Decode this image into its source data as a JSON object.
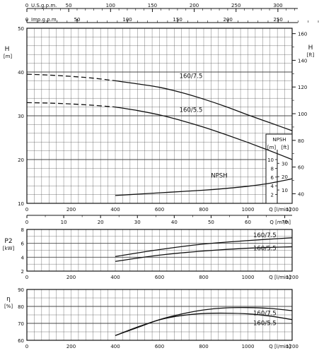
{
  "chart_data": [
    {
      "type": "line",
      "panel": "head",
      "top_axes": [
        {
          "label": "U.S.g.p.m.",
          "min": 0,
          "max": 350,
          "ticks": [
            0,
            50,
            100,
            150,
            200,
            250,
            300,
            350
          ]
        },
        {
          "label": "Imp.g.p.m.",
          "min": 0,
          "max": 300,
          "ticks": [
            0,
            50,
            100,
            150,
            200,
            250,
            300
          ]
        }
      ],
      "x_axis": {
        "label": "Q [l/min]",
        "min": 0,
        "max": 1200,
        "ticks": [
          0,
          200,
          400,
          600,
          800,
          1000,
          1200
        ]
      },
      "x_axis_secondary": {
        "label": "Q [m³/h]",
        "min": 0,
        "max": 72,
        "ticks": [
          0,
          10,
          20,
          30,
          40,
          50,
          60,
          70
        ]
      },
      "y_axis": {
        "label": "H",
        "unit": "[m]",
        "min": 10,
        "max": 50,
        "ticks": [
          10,
          20,
          30,
          40,
          50
        ]
      },
      "y_axis_right": {
        "label": "H",
        "unit": "[ft]",
        "min": 32.8,
        "max": 164,
        "ticks": [
          40,
          60,
          80,
          100,
          120,
          140,
          160
        ]
      },
      "npsh_axis": {
        "label": "NPSH",
        "unit_m": "[m]",
        "unit_ft": "[ft]",
        "ticks_m": [
          2,
          4,
          6,
          8,
          10
        ],
        "ticks_ft": [
          10,
          20,
          30
        ]
      },
      "grid": true,
      "series": [
        {
          "name": "160/7.5",
          "dashed_to": 400,
          "x": [
            0,
            100,
            200,
            300,
            400,
            500,
            600,
            700,
            800,
            900,
            1000,
            1100,
            1200
          ],
          "y": [
            39.5,
            39.3,
            39,
            38.6,
            38,
            37.3,
            36.5,
            35.3,
            33.8,
            32.1,
            30.2,
            28.4,
            26.6
          ]
        },
        {
          "name": "160/5.5",
          "dashed_to": 400,
          "x": [
            0,
            100,
            200,
            300,
            400,
            500,
            600,
            700,
            800,
            900,
            1000,
            1100,
            1200
          ],
          "y": [
            33,
            32.9,
            32.7,
            32.4,
            32,
            31.2,
            30.2,
            28.9,
            27.4,
            25.7,
            23.9,
            22,
            20
          ],
          "label_at": [
            780,
            31.6
          ]
        },
        {
          "name": "NPSH",
          "x": [
            400,
            500,
            600,
            700,
            800,
            900,
            1000,
            1100,
            1200
          ],
          "y": [
            11.8,
            12.1,
            12.4,
            12.7,
            13,
            13.4,
            13.9,
            14.6,
            15.6
          ]
        }
      ]
    },
    {
      "type": "line",
      "panel": "power",
      "x_axis": {
        "label": "Q [l/min]",
        "min": 0,
        "max": 1200,
        "ticks": [
          0,
          200,
          400,
          600,
          800,
          1000,
          1200
        ]
      },
      "y_axis": {
        "label": "P2",
        "unit": "[kW]",
        "min": 2,
        "max": 8,
        "ticks": [
          2,
          4,
          6,
          8
        ]
      },
      "grid": true,
      "series": [
        {
          "name": "160/7.5",
          "x": [
            400,
            600,
            800,
            1000,
            1200
          ],
          "y": [
            4.1,
            5.1,
            5.9,
            6.4,
            6.8
          ]
        },
        {
          "name": "160/5.5",
          "x": [
            400,
            600,
            800,
            1000,
            1200
          ],
          "y": [
            3.4,
            4.3,
            4.9,
            5.3,
            5.5
          ]
        }
      ]
    },
    {
      "type": "line",
      "panel": "efficiency",
      "x_axis": {
        "label": "Q [l/min]",
        "min": 0,
        "max": 1200,
        "ticks": [
          0,
          200,
          400,
          600,
          800,
          1000,
          1200
        ]
      },
      "y_axis": {
        "label": "η",
        "unit": "[%]",
        "min": 60,
        "max": 90,
        "ticks": [
          60,
          70,
          80,
          90
        ]
      },
      "grid": true,
      "series": [
        {
          "name": "160/7.5",
          "x": [
            400,
            500,
            600,
            700,
            800,
            900,
            1000,
            1100,
            1200
          ],
          "y": [
            62.8,
            67.5,
            72.2,
            75.5,
            77.9,
            79.1,
            79.3,
            78.8,
            77.5
          ]
        },
        {
          "name": "160/5.5",
          "x": [
            400,
            500,
            600,
            700,
            800,
            900,
            1000,
            1100,
            1200
          ],
          "y": [
            62.8,
            67.8,
            72.1,
            74.6,
            75.8,
            76,
            75.6,
            74.3,
            72.2
          ]
        }
      ]
    }
  ]
}
